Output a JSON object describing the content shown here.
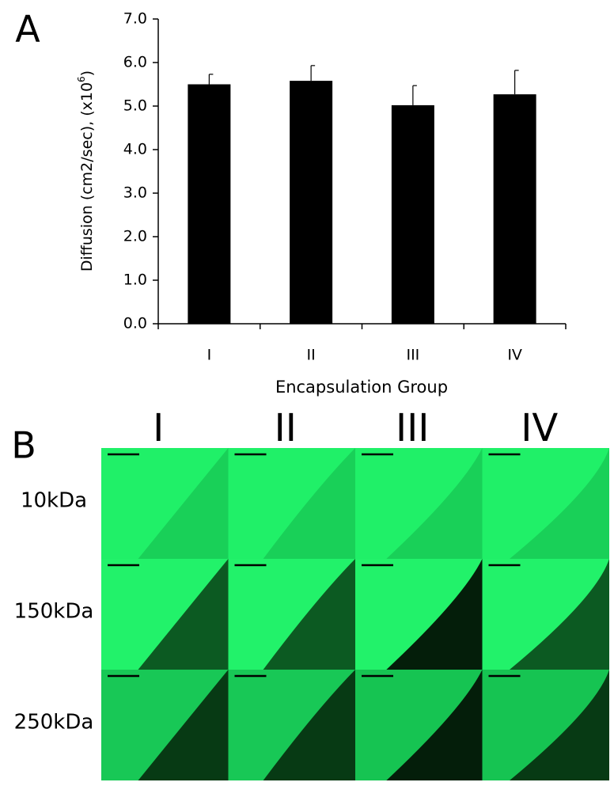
{
  "chart_data": {
    "type": "bar",
    "panel": "A",
    "categories": [
      "I",
      "II",
      "III",
      "IV"
    ],
    "values": [
      5.5,
      5.58,
      5.02,
      5.27
    ],
    "errors": [
      0.23,
      0.35,
      0.45,
      0.55
    ],
    "color": "#000000",
    "ylim": [
      0,
      7
    ],
    "yticks": [
      {
        "value": 0,
        "label": "0.0"
      },
      {
        "value": 1,
        "label": "1.0"
      },
      {
        "value": 2,
        "label": "2.0"
      },
      {
        "value": 3,
        "label": "3.0"
      },
      {
        "value": 4,
        "label": "4.0"
      },
      {
        "value": 5,
        "label": "5.0"
      },
      {
        "value": 6,
        "label": "6.0"
      },
      {
        "value": 7,
        "label": "7.0"
      }
    ],
    "y_label": [
      "Diffusion (cm2/sec), (x10",
      "6",
      ")"
    ],
    "x_label": "Encapsulation Group"
  },
  "image_grid": {
    "panel": "B",
    "columns": [
      "I",
      "II",
      "III",
      "IV"
    ],
    "rows": [
      "10kDa",
      "150kDa",
      "250kDa"
    ]
  }
}
